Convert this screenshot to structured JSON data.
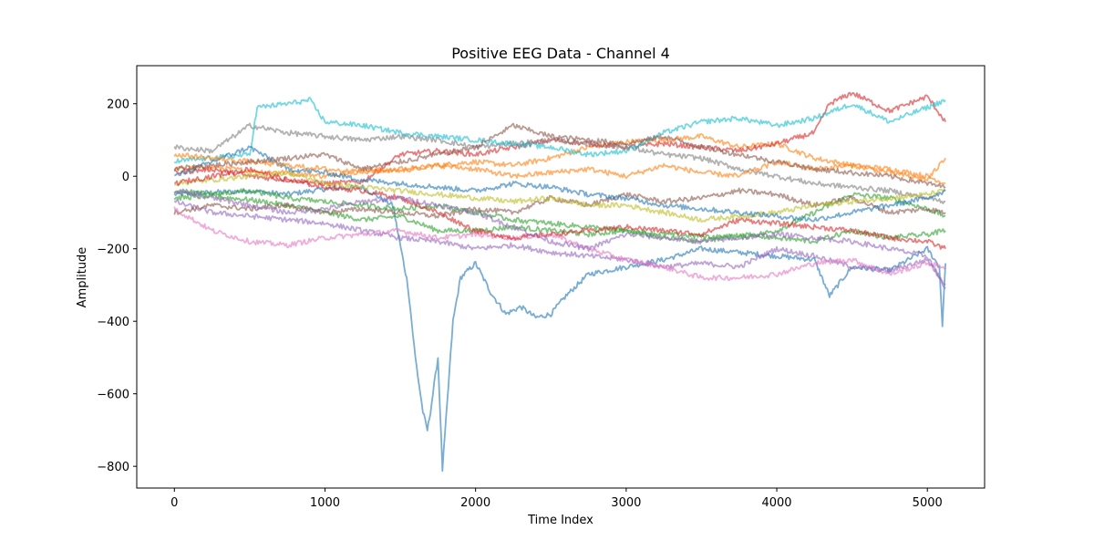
{
  "chart_data": {
    "type": "line",
    "title": "Positive EEG Data - Channel 4",
    "xlabel": "Time Index",
    "ylabel": "Amplitude",
    "xlim": [
      -250,
      5380
    ],
    "ylim": [
      -860,
      305
    ],
    "xticks": [
      0,
      1000,
      2000,
      3000,
      4000,
      5000
    ],
    "xtick_labels": [
      "0",
      "1000",
      "2000",
      "3000",
      "4000",
      "5000"
    ],
    "yticks": [
      -800,
      -600,
      -400,
      -200,
      0,
      200
    ],
    "ytick_labels": [
      "−800",
      "−600",
      "−400",
      "−200",
      "0",
      "200"
    ],
    "grid": false,
    "legend": "none",
    "line_opacity": 0.6,
    "series": [
      {
        "color": "#1f77b4",
        "x": [
          0,
          250,
          500,
          750,
          1000,
          1250,
          1450,
          1550,
          1600,
          1650,
          1680,
          1700,
          1750,
          1780,
          1850,
          1900,
          2000,
          2100,
          2200,
          2300,
          2400,
          2500,
          2600,
          2750,
          3000,
          3250,
          3500,
          3750,
          4000,
          4250,
          4350,
          4500,
          4750,
          5000,
          5080,
          5100,
          5120
        ],
        "y": [
          -50,
          -45,
          -40,
          -50,
          -35,
          -30,
          -80,
          -300,
          -500,
          -650,
          -700,
          -650,
          -500,
          -810,
          -400,
          -280,
          -240,
          -320,
          -380,
          -360,
          -390,
          -380,
          -330,
          -270,
          -250,
          -230,
          -200,
          -210,
          -220,
          -230,
          -330,
          -250,
          -260,
          -200,
          -250,
          -410,
          -240
        ]
      },
      {
        "color": "#ff7f0e",
        "x": [
          0,
          250,
          500,
          750,
          1000,
          1250,
          1500,
          1750,
          2000,
          2250,
          2500,
          2750,
          3000,
          3250,
          3500,
          3750,
          4000,
          4250,
          4500,
          4750,
          5000,
          5120
        ],
        "y": [
          20,
          25,
          15,
          10,
          0,
          20,
          15,
          30,
          40,
          30,
          50,
          80,
          95,
          100,
          110,
          80,
          90,
          50,
          30,
          20,
          0,
          -20
        ]
      },
      {
        "color": "#2ca02c",
        "x": [
          0,
          250,
          500,
          750,
          1000,
          1250,
          1500,
          1750,
          2000,
          2250,
          2500,
          2750,
          3000,
          3250,
          3500,
          3750,
          4000,
          4250,
          4500,
          4750,
          5000,
          5120
        ],
        "y": [
          -60,
          -55,
          -65,
          -80,
          -100,
          -120,
          -110,
          -150,
          -150,
          -140,
          -150,
          -160,
          -150,
          -160,
          -165,
          -170,
          -150,
          -100,
          -50,
          -60,
          -90,
          -110
        ]
      },
      {
        "color": "#d62728",
        "x": [
          0,
          250,
          500,
          750,
          1000,
          1250,
          1500,
          1750,
          2000,
          2250,
          2500,
          2750,
          3000,
          3250,
          3500,
          3750,
          4000,
          4250,
          4350,
          4500,
          4750,
          5000,
          5120
        ],
        "y": [
          10,
          20,
          0,
          -10,
          -20,
          -15,
          60,
          70,
          60,
          80,
          100,
          90,
          80,
          90,
          80,
          70,
          90,
          120,
          200,
          230,
          180,
          220,
          150
        ]
      },
      {
        "color": "#9467bd",
        "x": [
          0,
          250,
          500,
          750,
          1000,
          1250,
          1500,
          1750,
          2000,
          2250,
          2500,
          2750,
          3000,
          3250,
          3500,
          3750,
          4000,
          4250,
          4500,
          4750,
          5000,
          5120
        ],
        "y": [
          -70,
          -100,
          -110,
          -120,
          -130,
          -150,
          -170,
          -180,
          -200,
          -190,
          -210,
          -220,
          -230,
          -250,
          -240,
          -250,
          -200,
          -220,
          -250,
          -260,
          -230,
          -300
        ]
      },
      {
        "color": "#8c564b",
        "x": [
          0,
          250,
          500,
          750,
          1000,
          1250,
          1500,
          1750,
          2000,
          2250,
          2500,
          2750,
          3000,
          3250,
          3500,
          3750,
          4000,
          4250,
          4500,
          4750,
          5000,
          5120
        ],
        "y": [
          -100,
          -80,
          -90,
          -80,
          -100,
          -90,
          -100,
          -110,
          -90,
          -100,
          -60,
          -80,
          -50,
          -70,
          -60,
          -40,
          -50,
          -80,
          -60,
          -100,
          -90,
          -100
        ]
      },
      {
        "color": "#e377c2",
        "x": [
          0,
          250,
          500,
          750,
          1000,
          1250,
          1500,
          1750,
          2000,
          2250,
          2500,
          2750,
          3000,
          3250,
          3500,
          3750,
          4000,
          4250,
          4500,
          4750,
          5000,
          5120
        ],
        "y": [
          -90,
          -150,
          -180,
          -190,
          -170,
          -160,
          -150,
          -170,
          -160,
          -170,
          -160,
          -200,
          -230,
          -250,
          -280,
          -280,
          -270,
          -240,
          -230,
          -270,
          -240,
          -250
        ]
      },
      {
        "color": "#7f7f7f",
        "x": [
          0,
          250,
          500,
          750,
          1000,
          1250,
          1500,
          1750,
          2000,
          2250,
          2500,
          2750,
          3000,
          3250,
          3500,
          3750,
          4000,
          4250,
          4500,
          4750,
          5000,
          5120
        ],
        "y": [
          80,
          70,
          140,
          120,
          110,
          100,
          110,
          100,
          80,
          90,
          100,
          90,
          80,
          60,
          50,
          20,
          0,
          -20,
          -30,
          -40,
          -60,
          -70
        ]
      },
      {
        "color": "#bcbd22",
        "x": [
          0,
          250,
          500,
          750,
          1000,
          1250,
          1500,
          1750,
          2000,
          2250,
          2500,
          2750,
          3000,
          3250,
          3500,
          3750,
          4000,
          4250,
          4500,
          4750,
          5000,
          5120
        ],
        "y": [
          -20,
          -10,
          0,
          10,
          -20,
          -30,
          -40,
          -50,
          -60,
          -70,
          -60,
          -80,
          -80,
          -100,
          -120,
          -110,
          -100,
          -80,
          -70,
          -60,
          -50,
          -40
        ]
      },
      {
        "color": "#17becf",
        "x": [
          0,
          100,
          250,
          500,
          550,
          750,
          900,
          1000,
          1250,
          1500,
          1750,
          2000,
          2250,
          2500,
          2750,
          3000,
          3250,
          3500,
          3750,
          4000,
          4250,
          4500,
          4750,
          5000,
          5120
        ],
        "y": [
          40,
          45,
          50,
          60,
          190,
          200,
          210,
          150,
          140,
          120,
          110,
          100,
          90,
          80,
          60,
          70,
          120,
          150,
          160,
          140,
          160,
          200,
          150,
          190,
          210
        ]
      },
      {
        "color": "#1f77b4",
        "x": [
          0,
          250,
          500,
          750,
          1000,
          1250,
          1500,
          1750,
          2000,
          2250,
          2500,
          2750,
          3000,
          3250,
          3500,
          3750,
          4000,
          4250,
          4500,
          4750,
          5000,
          5120
        ],
        "y": [
          0,
          40,
          80,
          20,
          10,
          -10,
          -20,
          -30,
          -40,
          -20,
          -30,
          -50,
          -60,
          -80,
          -90,
          -100,
          -110,
          -120,
          -100,
          -80,
          -60,
          -40
        ]
      },
      {
        "color": "#ff7f0e",
        "x": [
          0,
          250,
          500,
          750,
          1000,
          1250,
          1500,
          1750,
          2000,
          2250,
          2500,
          2750,
          3000,
          3250,
          3500,
          3750,
          4000,
          4250,
          4500,
          4750,
          5000,
          5120
        ],
        "y": [
          60,
          50,
          40,
          30,
          20,
          10,
          20,
          30,
          20,
          0,
          10,
          20,
          0,
          30,
          10,
          0,
          40,
          20,
          30,
          10,
          -10,
          50
        ]
      },
      {
        "color": "#2ca02c",
        "x": [
          0,
          250,
          500,
          750,
          1000,
          1250,
          1500,
          1750,
          2000,
          2250,
          2500,
          2750,
          3000,
          3250,
          3500,
          3750,
          4000,
          4250,
          4500,
          4750,
          5000,
          5120
        ],
        "y": [
          -40,
          -50,
          -40,
          -60,
          -70,
          -80,
          -90,
          -80,
          -100,
          -120,
          -130,
          -140,
          -150,
          -170,
          -180,
          -160,
          -170,
          -180,
          -150,
          -170,
          -160,
          -150
        ]
      },
      {
        "color": "#d62728",
        "x": [
          0,
          250,
          500,
          750,
          1000,
          1250,
          1500,
          1750,
          2000,
          2250,
          2500,
          2750,
          3000,
          3250,
          3500,
          3750,
          4000,
          4250,
          4500,
          4750,
          5000,
          5120
        ],
        "y": [
          -20,
          0,
          20,
          -10,
          -30,
          -40,
          -60,
          -100,
          -150,
          -170,
          -160,
          -150,
          -140,
          -150,
          -160,
          -120,
          -130,
          -140,
          -150,
          -170,
          -180,
          -200
        ]
      },
      {
        "color": "#9467bd",
        "x": [
          0,
          250,
          500,
          750,
          1000,
          1250,
          1500,
          1750,
          2000,
          2250,
          2500,
          2750,
          3000,
          3250,
          3500,
          3750,
          4000,
          4250,
          4500,
          4750,
          5000,
          5120
        ],
        "y": [
          -40,
          -60,
          -80,
          -100,
          -90,
          -70,
          -60,
          -80,
          -100,
          -140,
          -180,
          -200,
          -160,
          -170,
          -180,
          -170,
          -160,
          -170,
          -180,
          -200,
          -220,
          -310
        ]
      },
      {
        "color": "#8c564b",
        "x": [
          0,
          250,
          500,
          750,
          1000,
          1250,
          1500,
          1750,
          2000,
          2250,
          2500,
          2750,
          3000,
          3250,
          3500,
          3750,
          4000,
          4250,
          4500,
          4750,
          5000,
          5120
        ],
        "y": [
          20,
          30,
          40,
          50,
          60,
          20,
          40,
          60,
          80,
          140,
          110,
          100,
          90,
          110,
          80,
          60,
          40,
          20,
          10,
          0,
          -20,
          -30
        ]
      }
    ]
  }
}
